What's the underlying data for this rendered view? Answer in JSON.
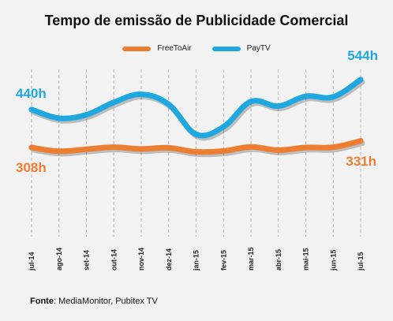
{
  "chart_data": {
    "type": "line",
    "title": "Tempo de emissão de Publicidade Comercial",
    "categories": [
      "jul-14",
      "ago-14",
      "set-14",
      "out-14",
      "nov-14",
      "dez-14",
      "jan-15",
      "fev-15",
      "mar-15",
      "abr-15",
      "mai-15",
      "jun-15",
      "jul-15"
    ],
    "series": [
      {
        "name": "FreeToAir",
        "color": "#ed7d31",
        "values": [
          308,
          295,
          302,
          309,
          303,
          307,
          293,
          296,
          310,
          299,
          308,
          309,
          331
        ]
      },
      {
        "name": "PayTV",
        "color": "#1fa8e0",
        "values": [
          440,
          410,
          422,
          465,
          493,
          458,
          354,
          380,
          468,
          452,
          486,
          484,
          544
        ]
      }
    ],
    "data_labels": [
      {
        "series": "PayTV",
        "index": 0,
        "text": "440h"
      },
      {
        "series": "FreeToAir",
        "index": 0,
        "text": "308h"
      },
      {
        "series": "PayTV",
        "index": 12,
        "text": "544h"
      },
      {
        "series": "FreeToAir",
        "index": 12,
        "text": "331h"
      }
    ],
    "legend_position": "top-center",
    "grid": "vertical dashed"
  },
  "source": {
    "label": "Fonte",
    "text": "MediaMonitor, Pubitex TV"
  }
}
